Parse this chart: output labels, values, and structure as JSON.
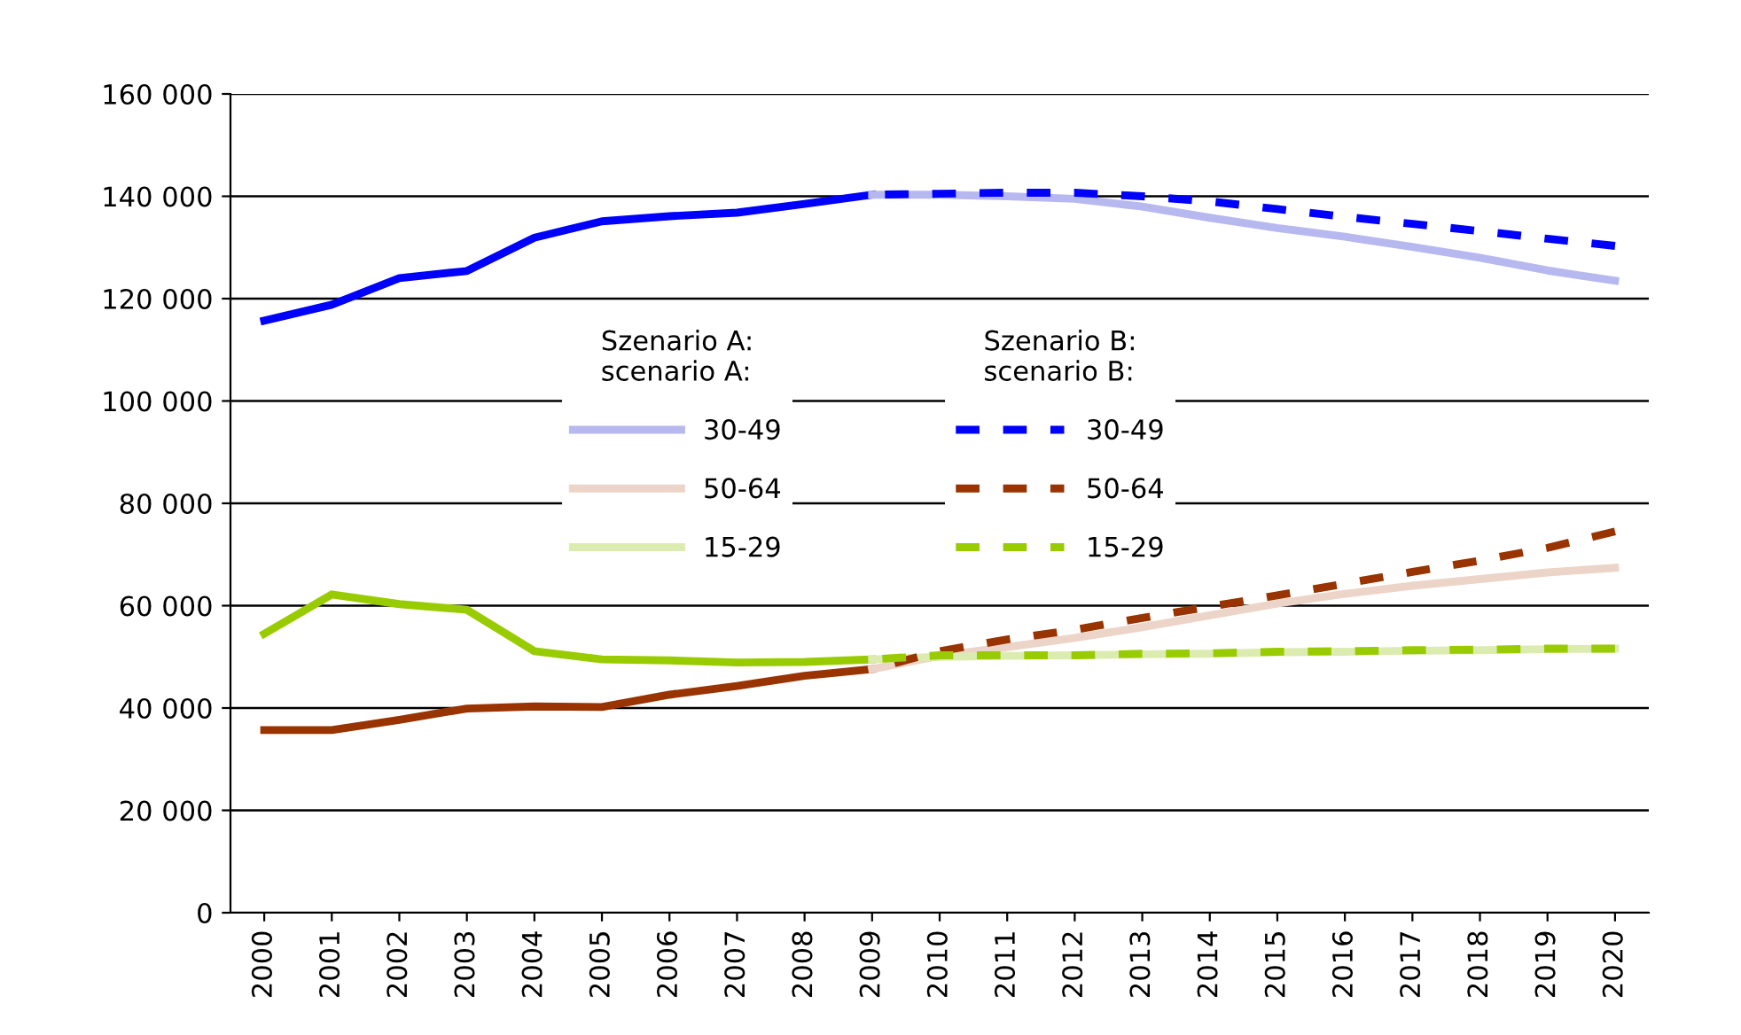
{
  "chart_data": {
    "type": "line",
    "xlim": [
      1999.5,
      2020.5
    ],
    "xticks": [
      2000,
      2001,
      2002,
      2003,
      2004,
      2005,
      2006,
      2007,
      2008,
      2009,
      2010,
      2011,
      2012,
      2013,
      2014,
      2015,
      2016,
      2017,
      2018,
      2019,
      2020
    ],
    "ylim": [
      0,
      160000
    ],
    "yticks": [
      0,
      {
        "value": 20000,
        "label": "20 000"
      },
      {
        "value": 40000,
        "label": "40 000"
      },
      {
        "value": 60000,
        "label": "60 000"
      },
      {
        "value": 80000,
        "label": "80 000"
      },
      {
        "value": 100000,
        "label": "100 000"
      },
      {
        "value": 120000,
        "label": "120 000"
      },
      {
        "value": 140000,
        "label": "140 000"
      },
      {
        "value": 160000,
        "label": "160 000"
      }
    ],
    "grid": "y",
    "legend": "center",
    "marker": "none",
    "annotations": [
      "Szenario A:\nscenario A:",
      "Szenario B:\nscenario B:"
    ],
    "series": [
      {
        "color": "#0000ff",
        "line_style": "solid",
        "x": [
          2000,
          2001,
          2002,
          2003,
          2004,
          2005,
          2006,
          2007,
          2008,
          2009
        ],
        "values": [
          115700,
          118800,
          124000,
          125400,
          131900,
          135100,
          136100,
          136800,
          138500,
          140300
        ]
      },
      {
        "color": "#993300",
        "line_style": "solid",
        "x": [
          2000,
          2001,
          2002,
          2003,
          2004,
          2005,
          2006,
          2007,
          2008,
          2009
        ],
        "values": [
          35700,
          35700,
          37700,
          39900,
          40300,
          40200,
          42600,
          44300,
          46300,
          47600
        ]
      },
      {
        "color": "#99cc00",
        "line_style": "solid",
        "x": [
          2000,
          2001,
          2002,
          2003,
          2004,
          2005,
          2006,
          2007,
          2008,
          2009
        ],
        "values": [
          54500,
          62200,
          60300,
          59200,
          51100,
          49500,
          49300,
          48900,
          49000,
          49500
        ]
      },
      {
        "name": "30-49",
        "color": "#b8b8f0",
        "line_style": "solid",
        "x": [
          2009,
          2010,
          2011,
          2012,
          2013,
          2014,
          2015,
          2016,
          2017,
          2018,
          2019,
          2020
        ],
        "values": [
          140300,
          140300,
          140000,
          139500,
          138000,
          135800,
          133800,
          132100,
          130100,
          128000,
          125500,
          123500
        ]
      },
      {
        "name": "50-64",
        "color": "#ecd4c8",
        "line_style": "solid",
        "x": [
          2009,
          2010,
          2011,
          2012,
          2013,
          2014,
          2015,
          2016,
          2017,
          2018,
          2019,
          2020
        ],
        "values": [
          47600,
          50200,
          51900,
          53700,
          55800,
          58100,
          60400,
          62300,
          63900,
          65200,
          66500,
          67400
        ]
      },
      {
        "name": "15-29",
        "color": "#dcecb0",
        "line_style": "solid",
        "x": [
          2009,
          2010,
          2011,
          2012,
          2013,
          2014,
          2015,
          2016,
          2017,
          2018,
          2019,
          2020
        ],
        "values": [
          49500,
          50000,
          50200,
          50300,
          50500,
          50600,
          50900,
          51000,
          51200,
          51300,
          51500,
          51600
        ]
      },
      {
        "name": "30-49",
        "color": "#0000ff",
        "line_style": "dashed",
        "x": [
          2009,
          2010,
          2011,
          2012,
          2013,
          2014,
          2015,
          2016,
          2017,
          2018,
          2019,
          2020
        ],
        "values": [
          140300,
          140500,
          140700,
          140700,
          140000,
          139000,
          137500,
          136000,
          134600,
          133200,
          131700,
          130300
        ]
      },
      {
        "name": "50-64",
        "color": "#993300",
        "line_style": "dashed",
        "x": [
          2009,
          2010,
          2011,
          2012,
          2013,
          2014,
          2015,
          2016,
          2017,
          2018,
          2019,
          2020
        ],
        "values": [
          47600,
          51100,
          53400,
          55300,
          57600,
          59800,
          62000,
          64300,
          66600,
          68800,
          71300,
          74500
        ]
      },
      {
        "name": "15-29",
        "color": "#99cc00",
        "line_style": "dashed",
        "x": [
          2009,
          2010,
          2011,
          2012,
          2013,
          2014,
          2015,
          2016,
          2017,
          2018,
          2019,
          2020
        ],
        "values": [
          49500,
          50300,
          50300,
          50300,
          50600,
          50700,
          51000,
          51100,
          51300,
          51400,
          51600,
          51600
        ]
      }
    ]
  }
}
